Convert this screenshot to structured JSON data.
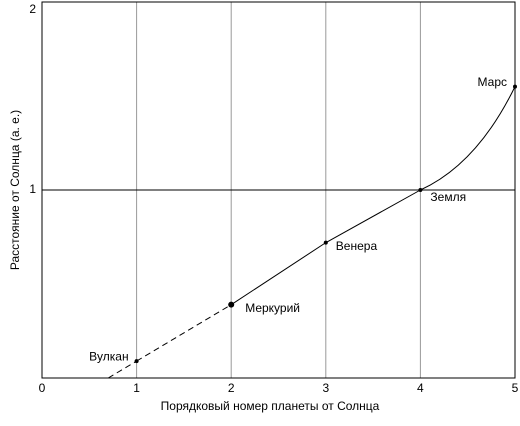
{
  "chart_data": {
    "type": "line",
    "x_label": "Порядковый номер планеты от Солнца",
    "y_label": "Расстояние от Солнца  (а. е.)",
    "series": [
      {
        "name": null,
        "color": "#000000",
        "x": [
          1,
          2,
          3,
          4,
          5
        ],
        "values": [
          0.09,
          0.39,
          0.72,
          1,
          1.55
        ],
        "point_labels": [
          "Вулкан",
          "Меркурий",
          "Венера",
          "Земля",
          "Марс"
        ]
      }
    ],
    "xlim": [
      0,
      5
    ],
    "xticks": [
      0,
      1,
      2,
      3,
      4,
      5
    ],
    "ylim": [
      0,
      2
    ],
    "yticks": [
      1,
      2
    ],
    "grid": true
  }
}
